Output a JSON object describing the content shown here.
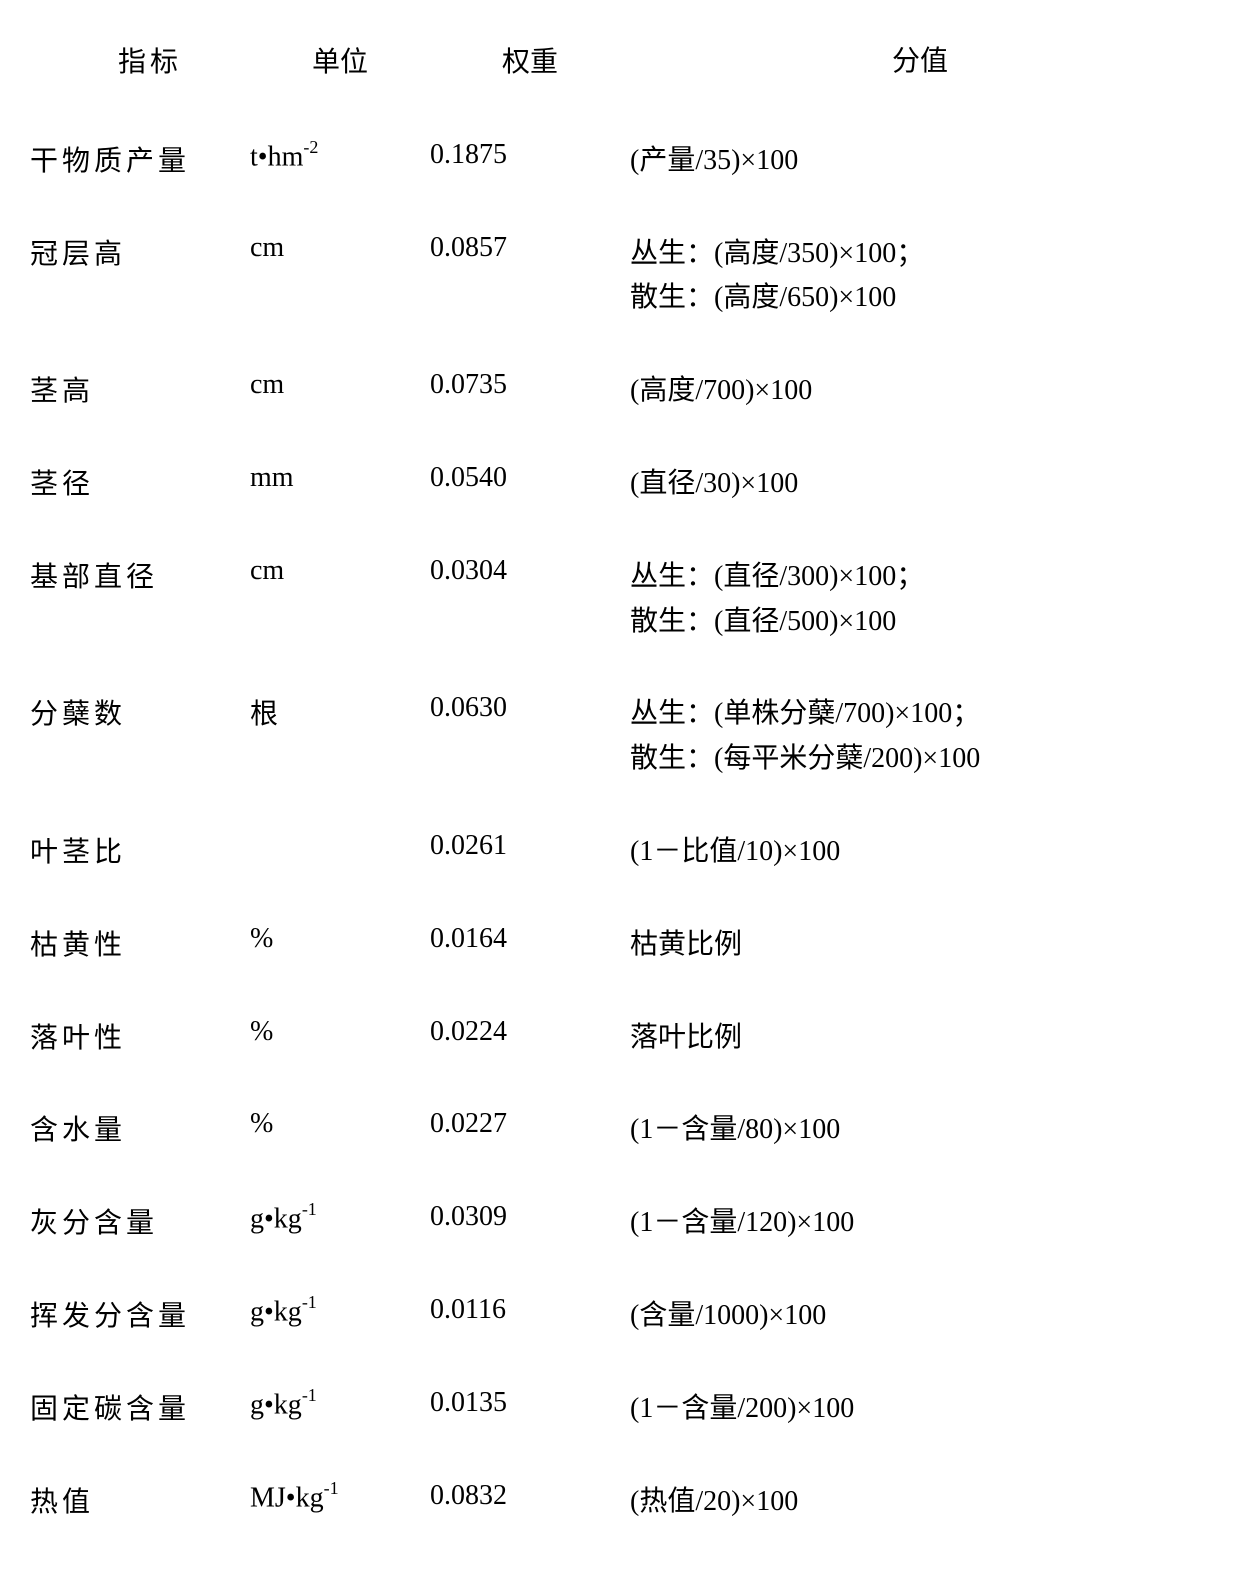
{
  "table": {
    "headers": {
      "indicator": "指标",
      "unit": "单位",
      "weight": "权重",
      "score": "分值"
    },
    "rows": [
      {
        "indicator": "干物质产量",
        "unit_html": "t•hm<span class='sup'>-2</span>",
        "weight": "0.1875",
        "score_lines": [
          "(产量/35)×100"
        ]
      },
      {
        "indicator": "冠层高",
        "unit_html": "cm",
        "weight": "0.0857",
        "score_lines": [
          "丛生：(高度/350)×100；",
          "散生：(高度/650)×100"
        ]
      },
      {
        "indicator": "茎高",
        "unit_html": "cm",
        "weight": "0.0735",
        "score_lines": [
          "(高度/700)×100"
        ]
      },
      {
        "indicator": "茎径",
        "unit_html": "mm",
        "weight": "0.0540",
        "score_lines": [
          "(直径/30)×100"
        ]
      },
      {
        "indicator": "基部直径",
        "unit_html": "cm",
        "weight": "0.0304",
        "score_lines": [
          "丛生：(直径/300)×100；",
          "散生：(直径/500)×100"
        ]
      },
      {
        "indicator": "分蘖数",
        "unit_html": "根",
        "weight": "0.0630",
        "score_lines": [
          "丛生：(单株分蘖/700)×100；",
          "散生：(每平米分蘖/200)×100"
        ]
      },
      {
        "indicator": "叶茎比",
        "unit_html": "",
        "weight": "0.0261",
        "score_lines": [
          "(1－比值/10)×100"
        ]
      },
      {
        "indicator": "枯黄性",
        "unit_html": "%",
        "weight": "0.0164",
        "score_lines": [
          "枯黄比例"
        ]
      },
      {
        "indicator": "落叶性",
        "unit_html": "%",
        "weight": "0.0224",
        "score_lines": [
          "落叶比例"
        ]
      },
      {
        "indicator": "含水量",
        "unit_html": "%",
        "weight": "0.0227",
        "score_lines": [
          "(1－含量/80)×100"
        ]
      },
      {
        "indicator": "灰分含量",
        "unit_html": "g•kg<span class='sup'>-1</span>",
        "weight": "0.0309",
        "score_lines": [
          "(1－含量/120)×100"
        ]
      },
      {
        "indicator": "挥发分含量",
        "unit_html": "g•kg<span class='sup'>-1</span>",
        "weight": "0.0116",
        "score_lines": [
          "(含量/1000)×100"
        ]
      },
      {
        "indicator": "固定碳含量",
        "unit_html": "g•kg<span class='sup'>-1</span>",
        "weight": "0.0135",
        "score_lines": [
          "(1－含量/200)×100"
        ]
      },
      {
        "indicator": "热值",
        "unit_html": "MJ•kg<span class='sup'>-1</span>",
        "weight": "0.0832",
        "score_lines": [
          "(热值/20)×100"
        ]
      }
    ]
  }
}
